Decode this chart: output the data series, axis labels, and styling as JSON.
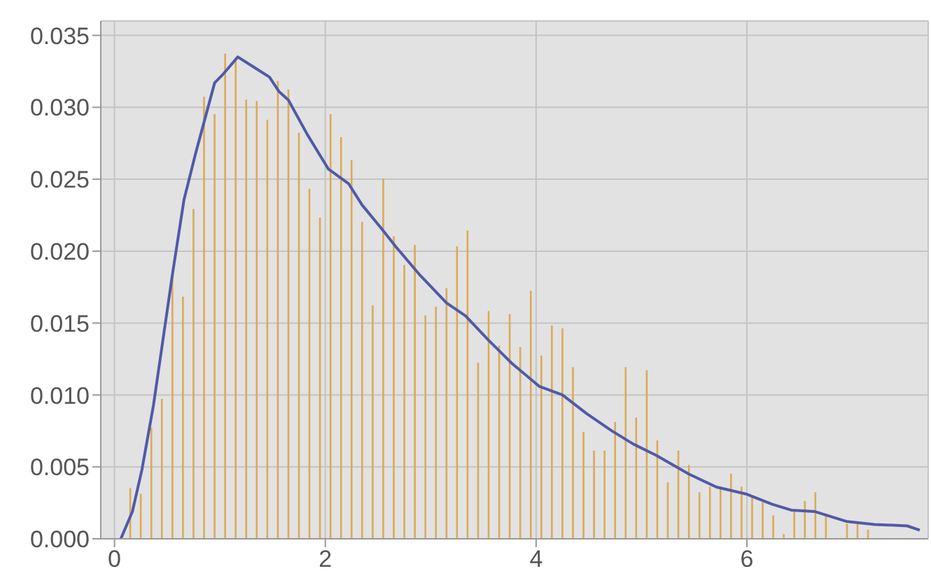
{
  "chart_data": {
    "type": "histogram",
    "color": "#ffd280",
    "bins": [
      0.1,
      0.2,
      0.3,
      0.4,
      0.5,
      0.6,
      0.7,
      0.8,
      0.9,
      1.0,
      1.1,
      1.2,
      1.3,
      1.4,
      1.5,
      1.6,
      1.7,
      1.8,
      1.9,
      2.0,
      2.1,
      2.2,
      2.3,
      2.4,
      2.5,
      2.6,
      2.7,
      2.8,
      2.9,
      3.0,
      3.1,
      3.2,
      3.3,
      3.4,
      3.5,
      3.6,
      3.7,
      3.8,
      3.9,
      4.0,
      4.1,
      4.2,
      4.3,
      4.4,
      4.5,
      4.6,
      4.7,
      4.8,
      4.9,
      5.0,
      5.1,
      5.2,
      5.3,
      5.4,
      5.5,
      5.6,
      5.7,
      5.8,
      5.9,
      6.0,
      6.1,
      6.2,
      6.3,
      6.4,
      6.5,
      6.6,
      6.7,
      6.8,
      6.9,
      7.0,
      7.1,
      7.2
    ],
    "values": [
      0.0035,
      0.0031,
      0.0077,
      0.0097,
      0.0187,
      0.0168,
      0.0229,
      0.0307,
      0.0295,
      0.0337,
      0.0334,
      0.0305,
      0.0304,
      0.0291,
      0.0318,
      0.0312,
      0.0282,
      0.0243,
      0.0223,
      0.0295,
      0.0279,
      0.0263,
      0.022,
      0.0162,
      0.025,
      0.021,
      0.019,
      0.0204,
      0.0155,
      0.0161,
      0.0174,
      0.0203,
      0.0214,
      0.0122,
      0.0158,
      0.0134,
      0.0156,
      0.0133,
      0.0172,
      0.0127,
      0.0148,
      0.0146,
      0.0119,
      0.0074,
      0.0061,
      0.0061,
      0.0081,
      0.0119,
      0.0084,
      0.0117,
      0.0068,
      0.0039,
      0.0061,
      0.0051,
      0.0032,
      0.0036,
      0.0036,
      0.0045,
      0.0036,
      0.0029,
      0.0025,
      0.0016,
      0.0003,
      0.0019,
      0.0026,
      0.0032,
      0.0017,
      0,
      0.001,
      0.001,
      0.0006
    ],
    "series": [
      {
        "type": "line",
        "color": "#4f5aa8",
        "x": [
          0.06,
          0.17,
          0.26,
          0.37,
          0.55,
          0.66,
          0.77,
          0.95,
          1.03,
          1.17,
          1.32,
          1.47,
          1.56,
          1.65,
          1.83,
          2.03,
          2.22,
          2.35,
          2.53,
          2.67,
          2.89,
          3.15,
          3.33,
          3.55,
          3.77,
          4.03,
          4.25,
          4.48,
          4.72,
          4.92,
          5.14,
          5.45,
          5.71,
          6.0,
          6.24,
          6.42,
          6.64,
          6.95,
          7.21,
          7.52,
          7.64
        ],
        "values": [
          0,
          0.0019,
          0.0048,
          0.0093,
          0.0184,
          0.0236,
          0.0268,
          0.0317,
          0.0323,
          0.0335,
          0.0328,
          0.0321,
          0.0311,
          0.0305,
          0.0281,
          0.0257,
          0.0247,
          0.0232,
          0.0216,
          0.0203,
          0.0184,
          0.0164,
          0.0155,
          0.0138,
          0.0122,
          0.0106,
          0.01,
          0.0087,
          0.0075,
          0.0066,
          0.0058,
          0.0045,
          0.0036,
          0.0031,
          0.0024,
          0.002,
          0.0019,
          0.0012,
          0.001,
          0.0009,
          0.0006
        ]
      }
    ],
    "xlim": [
      -0.13,
      7.72
    ],
    "xticks": [
      0,
      2,
      4,
      6
    ],
    "ylim": [
      0,
      0.036
    ],
    "yticks": [
      {
        "value": 0,
        "label": "0.000"
      },
      {
        "value": 0.005,
        "label": "0.005"
      },
      {
        "value": 0.01,
        "label": "0.010"
      },
      {
        "value": 0.015,
        "label": "0.015"
      },
      {
        "value": 0.02,
        "label": "0.020"
      },
      {
        "value": 0.025,
        "label": "0.025"
      },
      {
        "value": 0.03,
        "label": "0.030"
      },
      {
        "value": 0.035,
        "label": "0.035"
      }
    ],
    "grid": true
  }
}
